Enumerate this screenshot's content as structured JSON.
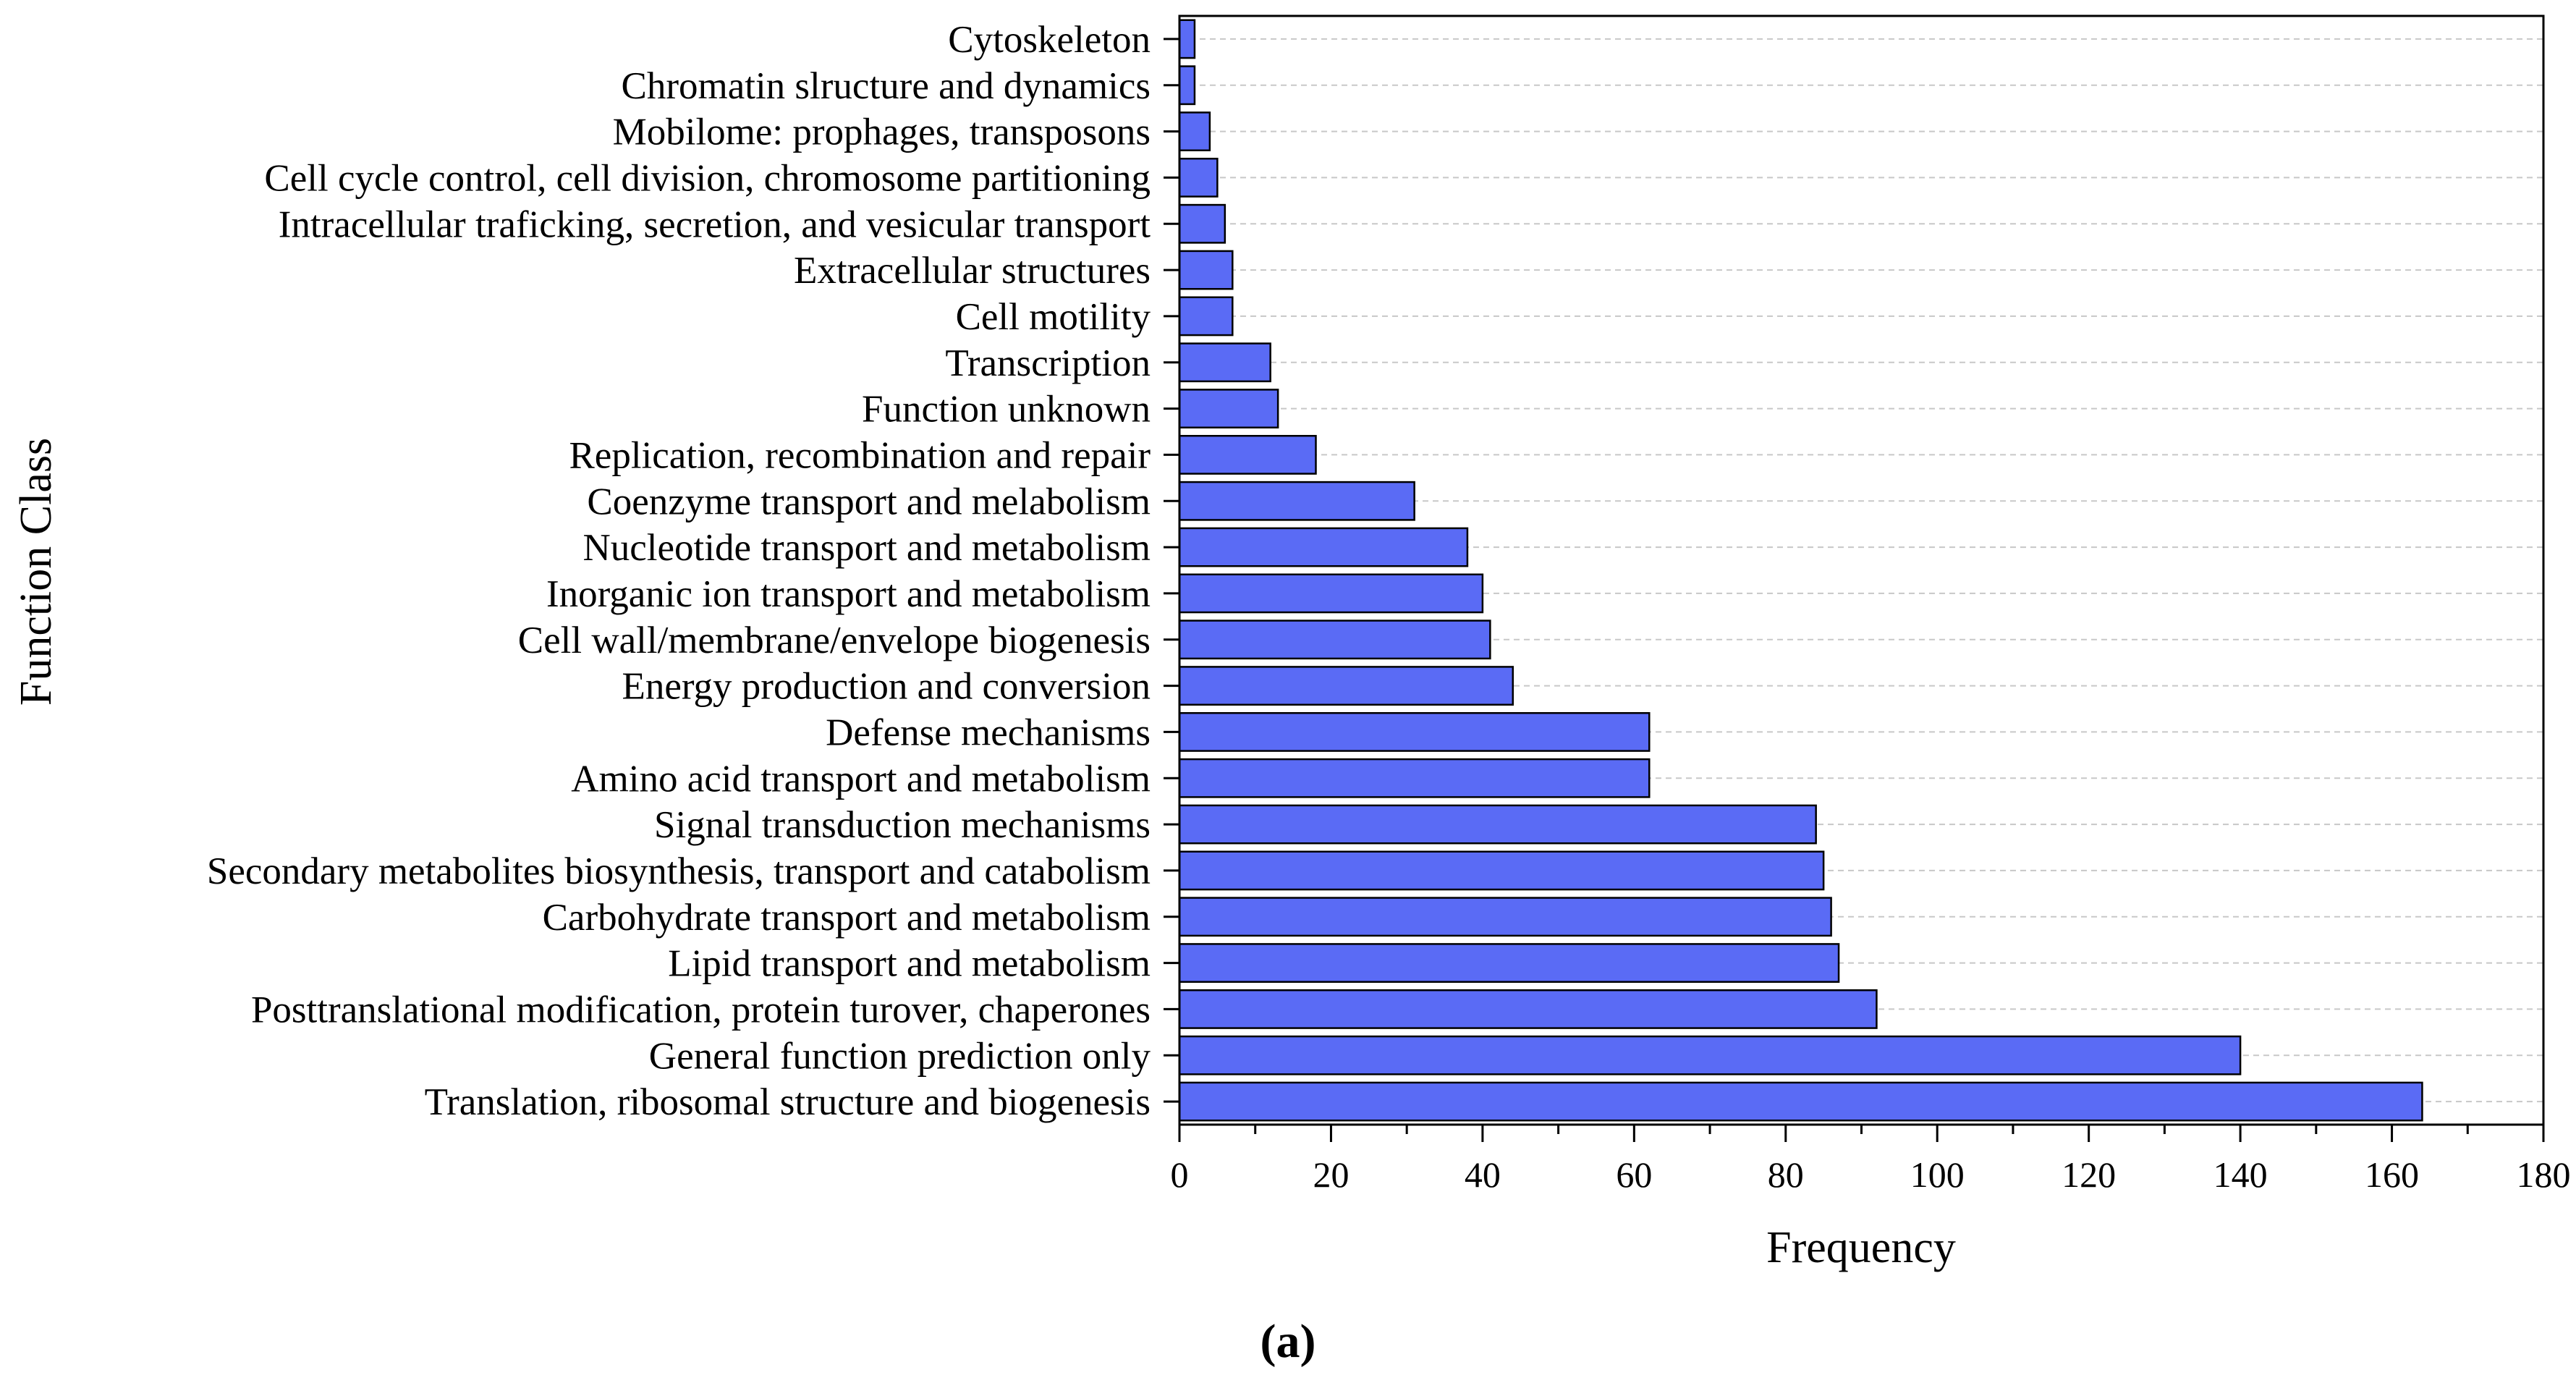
{
  "chart_data": {
    "type": "bar",
    "orientation": "horizontal",
    "xlabel": "Frequency",
    "ylabel": "Function Class",
    "caption": "(a)",
    "xlim": [
      0,
      180
    ],
    "xticks": [
      0,
      20,
      40,
      60,
      80,
      100,
      120,
      140,
      160,
      180
    ],
    "grid": "horizontal dashed",
    "bar_color": "#5a6bf5",
    "categories": [
      "Cytoskeleton",
      "Chromatin slructure and dynamics",
      "Mobilome: prophages, transposons",
      "Cell cycle control, cell division, chromosome partitioning",
      "Intracellular traficking, secretion, and vesicular transport",
      "Extracellular structures",
      "Cell motility",
      "Transcription",
      "Function unknown",
      "Replication, recombination and repair",
      "Coenzyme transport and melabolism",
      "Nucleotide transport and metabolism",
      "Inorganic ion transport and metabolism",
      "Cell wall/membrane/envelope biogenesis",
      "Energy production and conversion",
      "Defense mechanisms",
      "Amino acid transport and metabolism",
      "Signal transduction mechanisms",
      "Secondary metabolites biosynthesis, transport and catabolism",
      "Carbohydrate transport and metabolism",
      "Lipid transport and metabolism",
      "Posttranslational modification, protein turover, chaperones",
      "General function prediction only",
      "Translation, ribosomal structure and biogenesis"
    ],
    "values": [
      2,
      2,
      4,
      5,
      6,
      7,
      7,
      12,
      13,
      18,
      31,
      38,
      40,
      41,
      44,
      62,
      62,
      84,
      85,
      86,
      87,
      92,
      140,
      164
    ]
  }
}
